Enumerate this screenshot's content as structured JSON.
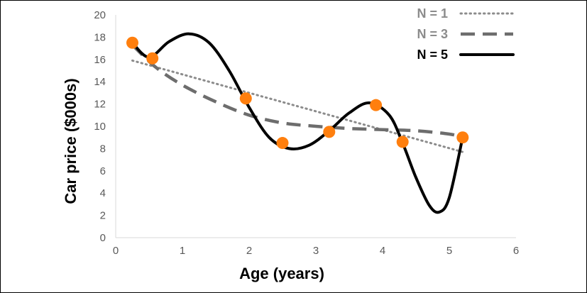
{
  "chart_data": {
    "type": "scatter",
    "title": "",
    "xlabel": "Age (years)",
    "ylabel": "Car price ($000s)",
    "xlim": [
      0,
      6
    ],
    "ylim": [
      0,
      20
    ],
    "xticks": [
      "0",
      "1",
      "2",
      "3",
      "4",
      "5",
      "6"
    ],
    "yticks": [
      "0",
      "2",
      "4",
      "6",
      "8",
      "10",
      "12",
      "14",
      "16",
      "18",
      "20"
    ],
    "grid": false,
    "legend_position": "top-right",
    "points": {
      "color": "#ff7f0e",
      "x": [
        0.25,
        0.55,
        1.95,
        2.5,
        3.2,
        3.9,
        4.3,
        5.2
      ],
      "y": [
        17.5,
        16.1,
        12.5,
        8.5,
        9.5,
        11.9,
        8.6,
        9.0
      ]
    },
    "series": [
      {
        "name": "N = 1",
        "style": "dotted",
        "color": "#8c8c8c",
        "x": [
          0.25,
          5.2
        ],
        "y": [
          15.9,
          7.7
        ]
      },
      {
        "name": "N = 3",
        "style": "dashed",
        "color": "#6d6d6d",
        "x": [
          0.25,
          0.6,
          1.0,
          1.5,
          2.0,
          2.5,
          3.0,
          3.5,
          4.0,
          4.5,
          5.0,
          5.2
        ],
        "y": [
          17.3,
          15.3,
          13.7,
          12.2,
          11.0,
          10.3,
          10.0,
          9.8,
          9.7,
          9.6,
          9.3,
          9.0
        ]
      },
      {
        "name": "N = 5",
        "style": "solid",
        "color": "#000000",
        "x": [
          0.25,
          0.5,
          0.8,
          1.1,
          1.4,
          1.7,
          2.0,
          2.3,
          2.6,
          2.9,
          3.2,
          3.5,
          3.8,
          4.1,
          4.3,
          4.5,
          4.7,
          4.85,
          5.0,
          5.2
        ],
        "y": [
          17.5,
          16.2,
          17.6,
          18.3,
          17.5,
          15.0,
          11.7,
          9.0,
          8.0,
          8.3,
          9.6,
          11.2,
          12.1,
          11.0,
          8.5,
          5.4,
          2.9,
          2.3,
          3.6,
          9.0
        ]
      }
    ]
  }
}
